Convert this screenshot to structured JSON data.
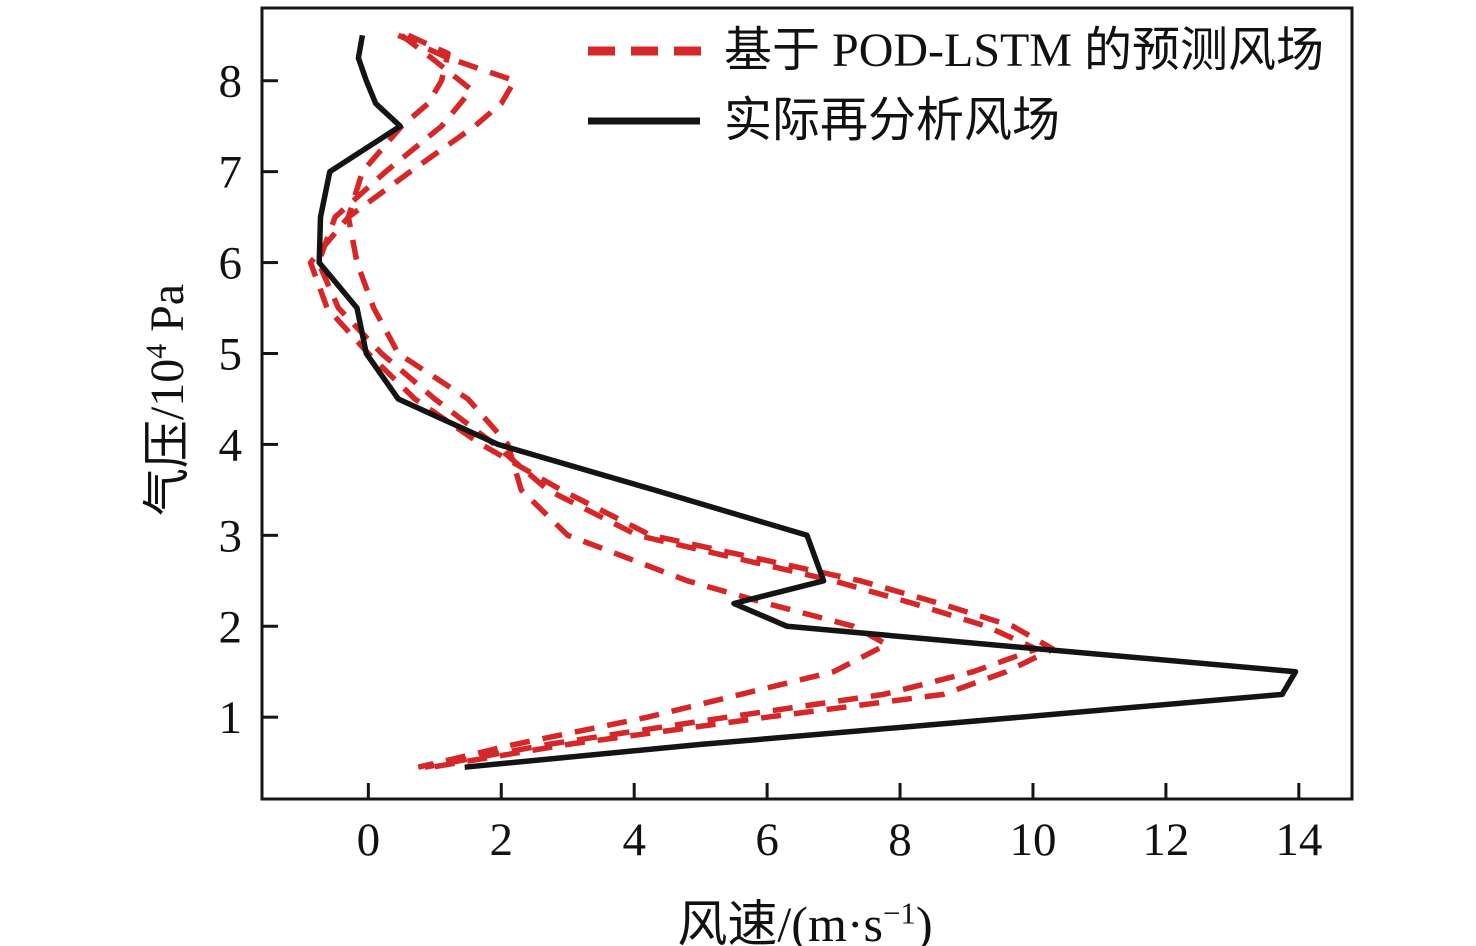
{
  "chart_data": {
    "type": "line",
    "title": "",
    "xlabel": "风速/(m·s⁻¹)",
    "ylabel": "气压/10⁴ Pa",
    "labels": {
      "ylabel_base": "气压/10",
      "ylabel_sup": "4",
      "ylabel_post": " Pa",
      "xlabel_base": "风速/(m·s",
      "xlabel_sup": "−1",
      "xlabel_post": ")"
    },
    "xlim": [
      -1.6,
      14.8
    ],
    "ylim": [
      0.1,
      8.8
    ],
    "xticks": [
      0,
      2,
      4,
      6,
      8,
      10,
      12,
      14
    ],
    "yticks": [
      1,
      2,
      3,
      4,
      5,
      6,
      7,
      8
    ],
    "grid": false,
    "legend_position": "upper right",
    "axis_color": "#151515",
    "colors": {
      "predicted": "#d62728",
      "actual": "#141414"
    },
    "series": [
      {
        "name": "基于 POD-LSTM 的预测风场",
        "style": "dashed",
        "color": "#d62728",
        "width": 5.5,
        "points": [
          [
            0.45,
            8.5
          ],
          [
            1.2,
            8.25
          ],
          [
            2.2,
            8.0
          ],
          [
            2.0,
            7.75
          ],
          [
            1.6,
            7.5
          ],
          [
            0.63,
            7.0
          ],
          [
            -0.3,
            6.5
          ],
          [
            -0.87,
            6.0
          ],
          [
            -0.62,
            5.5
          ],
          [
            0.0,
            5.0
          ],
          [
            0.7,
            4.5
          ],
          [
            1.7,
            4.0
          ],
          [
            2.9,
            3.5
          ],
          [
            4.25,
            3.0
          ],
          [
            7.4,
            2.5
          ],
          [
            8.6,
            2.25
          ],
          [
            9.7,
            2.0
          ],
          [
            10.3,
            1.75
          ],
          [
            9.6,
            1.5
          ],
          [
            8.65,
            1.25
          ],
          [
            6.0,
            1.0
          ],
          [
            3.0,
            0.7
          ],
          [
            0.95,
            0.45
          ]
        ]
      },
      {
        "name": "基于 POD-LSTM 的预测风场",
        "style": "dashed",
        "color": "#d62728",
        "width": 5.5,
        "points": [
          [
            0.5,
            8.5
          ],
          [
            0.95,
            8.25
          ],
          [
            1.55,
            7.9
          ],
          [
            1.1,
            7.5
          ],
          [
            0.26,
            7.0
          ],
          [
            -0.5,
            6.5
          ],
          [
            -0.75,
            6.0
          ],
          [
            -0.45,
            5.5
          ],
          [
            0.2,
            5.0
          ],
          [
            1.0,
            4.5
          ],
          [
            1.9,
            4.0
          ],
          [
            2.7,
            3.5
          ],
          [
            4.05,
            3.0
          ],
          [
            7.0,
            2.5
          ],
          [
            8.2,
            2.25
          ],
          [
            9.3,
            2.0
          ],
          [
            10.05,
            1.75
          ],
          [
            9.1,
            1.5
          ],
          [
            7.75,
            1.25
          ],
          [
            5.4,
            1.0
          ],
          [
            2.7,
            0.7
          ],
          [
            0.85,
            0.45
          ]
        ]
      },
      {
        "name": "基于 POD-LSTM 的预测风场",
        "style": "dashed",
        "color": "#d62728",
        "width": 5.5,
        "points": [
          [
            0.6,
            8.5
          ],
          [
            1.2,
            8.3
          ],
          [
            1.1,
            8.0
          ],
          [
            0.9,
            7.75
          ],
          [
            0.5,
            7.5
          ],
          [
            -0.09,
            7.0
          ],
          [
            -0.3,
            6.5
          ],
          [
            -0.17,
            6.0
          ],
          [
            0.08,
            5.5
          ],
          [
            0.45,
            5.0
          ],
          [
            1.5,
            4.5
          ],
          [
            2.1,
            4.0
          ],
          [
            2.3,
            3.5
          ],
          [
            3.0,
            3.0
          ],
          [
            4.8,
            2.5
          ],
          [
            6.0,
            2.25
          ],
          [
            7.3,
            2.0
          ],
          [
            7.8,
            1.8
          ],
          [
            7.0,
            1.5
          ],
          [
            5.6,
            1.25
          ],
          [
            4.2,
            1.0
          ],
          [
            2.2,
            0.7
          ],
          [
            0.75,
            0.45
          ]
        ]
      },
      {
        "name": "实际再分析风场",
        "style": "solid",
        "color": "#141414",
        "width": 5.5,
        "points": [
          [
            -0.09,
            8.5
          ],
          [
            -0.15,
            8.25
          ],
          [
            -0.03,
            8.0
          ],
          [
            0.11,
            7.75
          ],
          [
            0.48,
            7.5
          ],
          [
            -0.58,
            7.0
          ],
          [
            -0.72,
            6.5
          ],
          [
            -0.74,
            6.0
          ],
          [
            -0.17,
            5.5
          ],
          [
            -0.03,
            5.0
          ],
          [
            0.45,
            4.5
          ],
          [
            1.95,
            4.0
          ],
          [
            4.3,
            3.5
          ],
          [
            6.6,
            3.0
          ],
          [
            6.85,
            2.5
          ],
          [
            5.5,
            2.25
          ],
          [
            6.3,
            2.0
          ],
          [
            10.1,
            1.75
          ],
          [
            13.95,
            1.5
          ],
          [
            13.75,
            1.25
          ],
          [
            9.8,
            1.0
          ],
          [
            5.0,
            0.7
          ],
          [
            1.45,
            0.45
          ]
        ]
      }
    ]
  }
}
